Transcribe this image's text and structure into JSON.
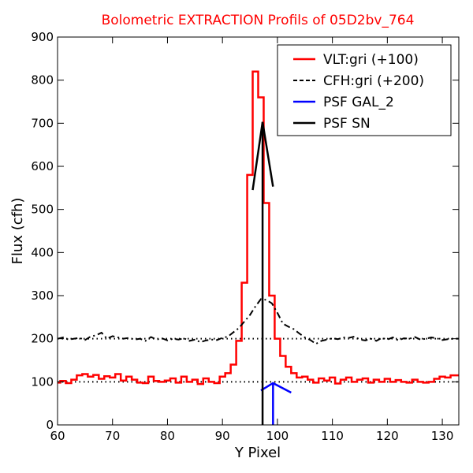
{
  "chart_data": {
    "type": "line",
    "title": "Bolometric EXTRACTION Profils of 05D2bv_764",
    "xlabel": "Y Pixel",
    "ylabel": "Flux (cfh)",
    "xlim": [
      60,
      133
    ],
    "ylim": [
      0,
      900
    ],
    "xticks": [
      60,
      70,
      80,
      90,
      100,
      110,
      120,
      130
    ],
    "yticks": [
      0,
      100,
      200,
      300,
      400,
      500,
      600,
      700,
      800,
      900
    ],
    "grid": false,
    "legend_position": "top-right",
    "reference_lines": [
      100,
      200
    ],
    "series": [
      {
        "name": "VLT:gri (+100)",
        "color": "#ff0000",
        "style": "step",
        "x": [
          60,
          61,
          62,
          63,
          64,
          65,
          66,
          67,
          68,
          69,
          70,
          71,
          72,
          73,
          74,
          75,
          76,
          77,
          78,
          79,
          80,
          81,
          82,
          83,
          84,
          85,
          86,
          87,
          88,
          89,
          90,
          91,
          92,
          93,
          94,
          95,
          96,
          97,
          98,
          99,
          100,
          101,
          102,
          103,
          104,
          105,
          106,
          107,
          108,
          109,
          110,
          111,
          112,
          113,
          114,
          115,
          116,
          117,
          118,
          119,
          120,
          121,
          122,
          123,
          124,
          125,
          126,
          127,
          128,
          129,
          130,
          131,
          132,
          133
        ],
        "y": [
          98,
          102,
          97,
          105,
          115,
          118,
          112,
          116,
          107,
          113,
          110,
          118,
          103,
          112,
          105,
          98,
          97,
          112,
          102,
          100,
          103,
          108,
          98,
          112,
          100,
          105,
          95,
          108,
          100,
          97,
          112,
          120,
          140,
          195,
          330,
          580,
          820,
          760,
          515,
          300,
          200,
          160,
          135,
          120,
          110,
          112,
          105,
          98,
          108,
          103,
          110,
          96,
          105,
          110,
          100,
          105,
          108,
          98,
          105,
          100,
          107,
          100,
          104,
          100,
          98,
          105,
          100,
          98,
          100,
          107,
          112,
          110,
          115,
          115
        ]
      },
      {
        "name": "CFH:gri (+200)",
        "color": "#000000",
        "style": "dash-dot",
        "x": [
          60,
          61,
          62,
          63,
          64,
          65,
          66,
          67,
          68,
          69,
          70,
          71,
          72,
          73,
          74,
          75,
          76,
          77,
          78,
          79,
          80,
          81,
          82,
          83,
          84,
          85,
          86,
          87,
          88,
          89,
          90,
          91,
          92,
          93,
          94,
          95,
          96,
          97,
          98,
          99,
          100,
          101,
          102,
          103,
          104,
          105,
          106,
          107,
          108,
          109,
          110,
          111,
          112,
          113,
          114,
          115,
          116,
          117,
          118,
          119,
          120,
          121,
          122,
          123,
          124,
          125,
          126,
          127,
          128,
          129,
          130,
          131,
          132,
          133
        ],
        "y": [
          200,
          203,
          198,
          200,
          202,
          197,
          205,
          208,
          214,
          200,
          206,
          203,
          200,
          202,
          198,
          200,
          195,
          204,
          198,
          201,
          196,
          200,
          198,
          201,
          195,
          198,
          192,
          196,
          198,
          197,
          202,
          205,
          215,
          225,
          240,
          255,
          275,
          292,
          290,
          282,
          260,
          235,
          228,
          222,
          212,
          203,
          197,
          188,
          195,
          198,
          201,
          199,
          203,
          202,
          205,
          198,
          196,
          200,
          195,
          202,
          198,
          203,
          196,
          201,
          200,
          204,
          198,
          200,
          203,
          201,
          197,
          199,
          200,
          200
        ]
      },
      {
        "name": "PSF GAL_2",
        "color": "#0000ff",
        "style": "solid",
        "x": [
          97.0,
          99.2,
          102.5
        ],
        "y": [
          80,
          97,
          75
        ],
        "peak_x": 99.2
      },
      {
        "name": "PSF SN",
        "color": "#000000",
        "style": "solid",
        "x": [
          95.5,
          97.3,
          99.2
        ],
        "y": [
          545,
          703,
          553
        ],
        "peak_x": 97.3
      }
    ]
  }
}
